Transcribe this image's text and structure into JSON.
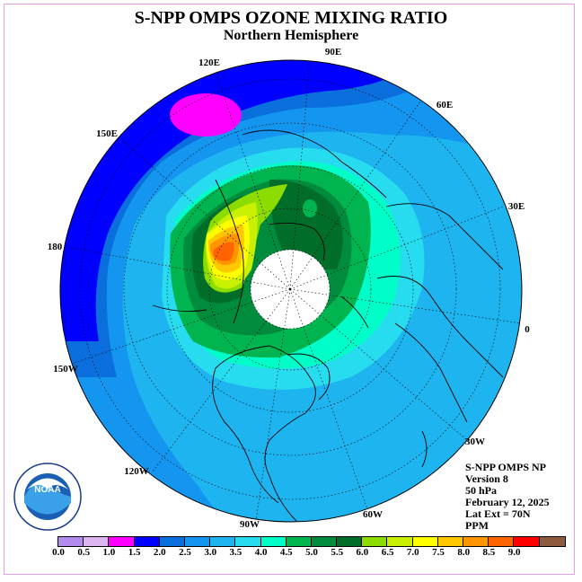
{
  "title": "S-NPP OMPS OZONE MIXING RATIO",
  "subtitle": "Northern Hemisphere",
  "longitude_labels": [
    "90E",
    "60E",
    "30E",
    "0",
    "30W",
    "60W",
    "90W",
    "120W",
    "150W",
    "180",
    "150E",
    "120E"
  ],
  "info": {
    "line1": "S-NPP OMPS NP",
    "line2": "Version 8",
    "line3": "50 hPa",
    "line4": "February 12, 2025",
    "line5": "Lat Ext = 70N",
    "line6": "PPM"
  },
  "logo_text": "NOAA",
  "colorbar": {
    "labels": [
      "0.0",
      "0.5",
      "1.0",
      "1.5",
      "2.0",
      "2.5",
      "3.0",
      "3.5",
      "4.0",
      "4.5",
      "5.0",
      "5.5",
      "6.0",
      "6.5",
      "7.0",
      "7.5",
      "8.0",
      "8.5",
      "9.0"
    ],
    "colors": [
      "#b48cf0",
      "#dcb4f0",
      "#ff00ff",
      "#0000ff",
      "#0a6edc",
      "#1496f0",
      "#1eb4f0",
      "#28dcf0",
      "#00ffc8",
      "#00b450",
      "#008c3c",
      "#006e28",
      "#8cdc00",
      "#c8f000",
      "#ffff00",
      "#ffc800",
      "#ff9600",
      "#ff6400",
      "#ff0000",
      "#8c5a3c"
    ]
  }
}
